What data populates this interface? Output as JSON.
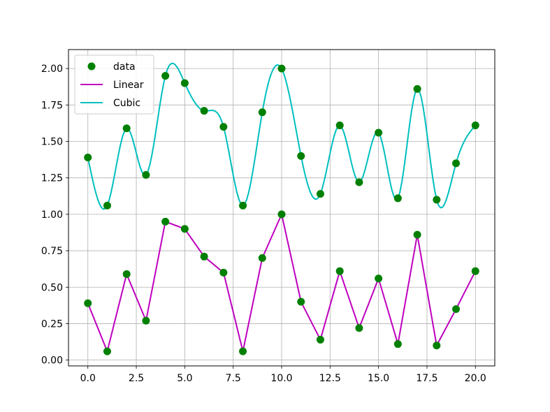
{
  "chart_data": {
    "type": "line",
    "title": "",
    "xlabel": "",
    "ylabel": "",
    "xlim": [
      -1.0,
      21.0
    ],
    "ylim": [
      -0.04,
      2.13
    ],
    "grid": true,
    "legend_position": "top-left",
    "x_ticks": [
      0.0,
      2.5,
      5.0,
      7.5,
      10.0,
      12.5,
      15.0,
      17.5,
      20.0
    ],
    "x_tick_labels": [
      "0.0",
      "2.5",
      "5.0",
      "7.5",
      "10.0",
      "12.5",
      "15.0",
      "17.5",
      "20.0"
    ],
    "y_ticks": [
      0.0,
      0.25,
      0.5,
      0.75,
      1.0,
      1.25,
      1.5,
      1.75,
      2.0
    ],
    "y_tick_labels": [
      "0.00",
      "0.25",
      "0.50",
      "0.75",
      "1.00",
      "1.25",
      "1.50",
      "1.75",
      "2.00"
    ],
    "x": [
      0,
      1,
      2,
      3,
      4,
      5,
      6,
      7,
      8,
      9,
      10,
      11,
      12,
      13,
      14,
      15,
      16,
      17,
      18,
      19,
      20
    ],
    "series": [
      {
        "name": "data",
        "kind": "markers",
        "color": "#008000",
        "groups": [
          [
            0.39,
            0.06,
            0.59,
            0.27,
            0.95,
            0.9,
            0.71,
            0.6,
            0.06,
            0.7,
            1.0,
            0.4,
            0.14,
            0.61,
            0.22,
            0.56,
            0.11,
            0.86,
            0.1,
            0.35,
            0.61
          ],
          [
            1.39,
            1.06,
            1.59,
            1.27,
            1.95,
            1.9,
            1.71,
            1.6,
            1.06,
            1.7,
            2.0,
            1.4,
            1.14,
            1.61,
            1.22,
            1.56,
            1.11,
            1.86,
            1.1,
            1.35,
            1.61
          ]
        ]
      },
      {
        "name": "Linear",
        "kind": "line",
        "color": "#bf00bf",
        "values": [
          0.39,
          0.06,
          0.59,
          0.27,
          0.95,
          0.9,
          0.71,
          0.6,
          0.06,
          0.7,
          1.0,
          0.4,
          0.14,
          0.61,
          0.22,
          0.56,
          0.11,
          0.86,
          0.1,
          0.35,
          0.61
        ]
      },
      {
        "name": "Cubic",
        "kind": "line",
        "color": "#00bfbf",
        "values": [
          1.39,
          1.06,
          1.59,
          1.27,
          1.95,
          1.9,
          1.71,
          1.6,
          1.06,
          1.7,
          2.0,
          1.4,
          1.14,
          1.61,
          1.22,
          1.56,
          1.11,
          1.86,
          1.1,
          1.35,
          1.61
        ]
      }
    ],
    "legend": [
      {
        "name": "data",
        "color": "#008000"
      },
      {
        "name": "Linear",
        "color": "#bf00bf"
      },
      {
        "name": "Cubic",
        "color": "#00bfbf"
      }
    ]
  }
}
